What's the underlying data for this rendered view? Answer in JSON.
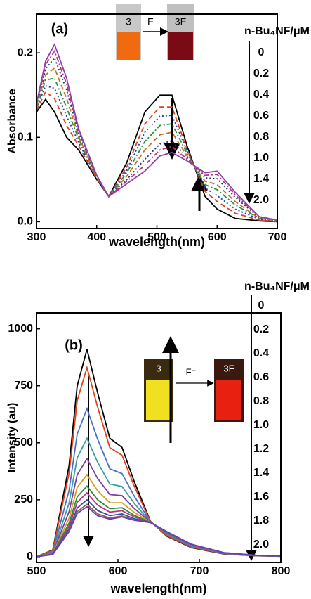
{
  "chart_data": [
    {
      "type": "line",
      "panel_label": "(a)",
      "xlabel": "wavelength(nm)",
      "ylabel": "Absorbance",
      "legend_title": "n-Bu₄NF/μM",
      "annotations": [
        "3",
        "F⁻",
        "3F"
      ],
      "xlim": [
        300,
        700
      ],
      "xticks": [
        300,
        400,
        500,
        600,
        700
      ],
      "ylim": [
        -0.008,
        0.246
      ],
      "yticks": [
        {
          "value": 0,
          "label": "0.0"
        },
        0.1,
        0.2
      ],
      "x": [
        300,
        315,
        330,
        350,
        370,
        400,
        420,
        450,
        480,
        505,
        525,
        550,
        580,
        600,
        630,
        670,
        700
      ],
      "series": [
        {
          "name": "0",
          "color": "#000000",
          "dash": "solid",
          "values": [
            0.13,
            0.145,
            0.13,
            0.1,
            0.085,
            0.05,
            0.03,
            0.07,
            0.13,
            0.15,
            0.15,
            0.09,
            0.03,
            0.015,
            0.004,
            0.001,
            0
          ]
        },
        {
          "name": "0.2",
          "color": "#e0401c",
          "dash": "dashed",
          "values": [
            0.132,
            0.154,
            0.146,
            0.114,
            0.09,
            0.051,
            0.03,
            0.065,
            0.116,
            0.136,
            0.136,
            0.086,
            0.036,
            0.024,
            0.01,
            0.002,
            0
          ]
        },
        {
          "name": "0.4",
          "color": "#2040c0",
          "dash": "dotted",
          "values": [
            0.134,
            0.161,
            0.158,
            0.125,
            0.094,
            0.052,
            0.03,
            0.061,
            0.106,
            0.125,
            0.126,
            0.084,
            0.04,
            0.031,
            0.015,
            0.003,
            0.001
          ]
        },
        {
          "name": "0.6",
          "color": "#2a9040",
          "dash": "dashdot",
          "values": [
            0.135,
            0.168,
            0.17,
            0.135,
            0.098,
            0.053,
            0.03,
            0.058,
            0.095,
            0.114,
            0.116,
            0.081,
            0.044,
            0.038,
            0.02,
            0.004,
            0.001
          ]
        },
        {
          "name": "0.8",
          "color": "#c07020",
          "dash": "dashed",
          "values": [
            0.137,
            0.174,
            0.182,
            0.146,
            0.101,
            0.053,
            0.03,
            0.054,
            0.085,
            0.103,
            0.106,
            0.078,
            0.048,
            0.044,
            0.024,
            0.004,
            0.001
          ]
        },
        {
          "name": "1.0",
          "color": "#203080",
          "dash": "dotted",
          "values": [
            0.138,
            0.181,
            0.194,
            0.156,
            0.105,
            0.054,
            0.03,
            0.05,
            0.074,
            0.092,
            0.096,
            0.076,
            0.052,
            0.051,
            0.029,
            0.005,
            0.002
          ]
        },
        {
          "name": "1.4",
          "color": "#c03080",
          "dash": "dashdot",
          "values": [
            0.139,
            0.186,
            0.202,
            0.163,
            0.108,
            0.055,
            0.03,
            0.048,
            0.067,
            0.085,
            0.089,
            0.074,
            0.055,
            0.056,
            0.032,
            0.006,
            0.002
          ]
        },
        {
          "name": "2.0",
          "color": "#9040b0",
          "dash": "solid",
          "values": [
            0.14,
            0.19,
            0.21,
            0.17,
            0.11,
            0.055,
            0.03,
            0.045,
            0.06,
            0.078,
            0.082,
            0.072,
            0.058,
            0.06,
            0.035,
            0.006,
            0.002
          ]
        }
      ]
    },
    {
      "type": "line",
      "panel_label": "(b)",
      "xlabel": "wavelength(nm)",
      "ylabel": "Intensity (au)",
      "legend_title": "n-Bu₄NF/μM",
      "annotations": [
        "3",
        "F⁻",
        "3F"
      ],
      "xlim": [
        500,
        800
      ],
      "xticks": [
        500,
        600,
        700,
        800
      ],
      "ylim": [
        -25,
        1070
      ],
      "yticks": [
        0,
        250,
        500,
        750,
        1000
      ],
      "x": [
        500,
        520,
        540,
        550,
        562,
        575,
        590,
        605,
        620,
        640,
        660,
        690,
        730,
        770,
        800
      ],
      "series": [
        {
          "name": "0",
          "color": "#000000",
          "values": [
            0,
            30,
            400,
            750,
            910,
            720,
            520,
            480,
            330,
            155,
            90,
            40,
            12,
            4,
            2
          ]
        },
        {
          "name": "0.2",
          "color": "#e0401c",
          "values": [
            0,
            28,
            366,
            685,
            830,
            657,
            479,
            445,
            310,
            154,
            92,
            42,
            13,
            4,
            2
          ]
        },
        {
          "name": "0.4",
          "color": "#4a6fd0",
          "values": [
            0,
            22,
            291,
            539,
            650,
            516,
            386,
            365,
            266,
            153,
            98,
            46,
            14,
            5,
            2
          ]
        },
        {
          "name": "0.6",
          "color": "#3aa0a0",
          "values": [
            0,
            19,
            236,
            434,
            520,
            415,
            319,
            308,
            234,
            152,
            101,
            48,
            15,
            5,
            3
          ]
        },
        {
          "name": "0.8",
          "color": "#7b3fa0",
          "values": [
            0,
            16,
            198,
            360,
            430,
            344,
            273,
            268,
            212,
            152,
            104,
            50,
            16,
            5,
            3
          ]
        },
        {
          "name": "1.0",
          "color": "#d0a020",
          "values": [
            0,
            14,
            169,
            304,
            360,
            290,
            237,
            237,
            195,
            151,
            106,
            52,
            17,
            6,
            3
          ]
        },
        {
          "name": "1.2",
          "color": "#2a8f3a",
          "values": [
            0,
            13,
            148,
            263,
            310,
            250,
            211,
            215,
            182,
            151,
            107,
            53,
            17,
            6,
            3
          ]
        },
        {
          "name": "1.4",
          "color": "#c03080",
          "values": [
            0,
            12,
            135,
            239,
            280,
            227,
            196,
            202,
            175,
            150,
            108,
            54,
            17,
            6,
            3
          ]
        },
        {
          "name": "1.6",
          "color": "#3050a0",
          "values": [
            0,
            11,
            122,
            214,
            250,
            203,
            180,
            188,
            167,
            150,
            109,
            54,
            18,
            6,
            3
          ]
        },
        {
          "name": "1.8",
          "color": "#a06040",
          "values": [
            0,
            10,
            114,
            198,
            230,
            188,
            170,
            179,
            162,
            150,
            110,
            55,
            18,
            6,
            3
          ]
        },
        {
          "name": "2.0",
          "color": "#6040c0",
          "values": [
            0,
            10,
            110,
            190,
            220,
            180,
            165,
            175,
            160,
            150,
            110,
            55,
            18,
            6,
            3
          ]
        }
      ]
    }
  ]
}
